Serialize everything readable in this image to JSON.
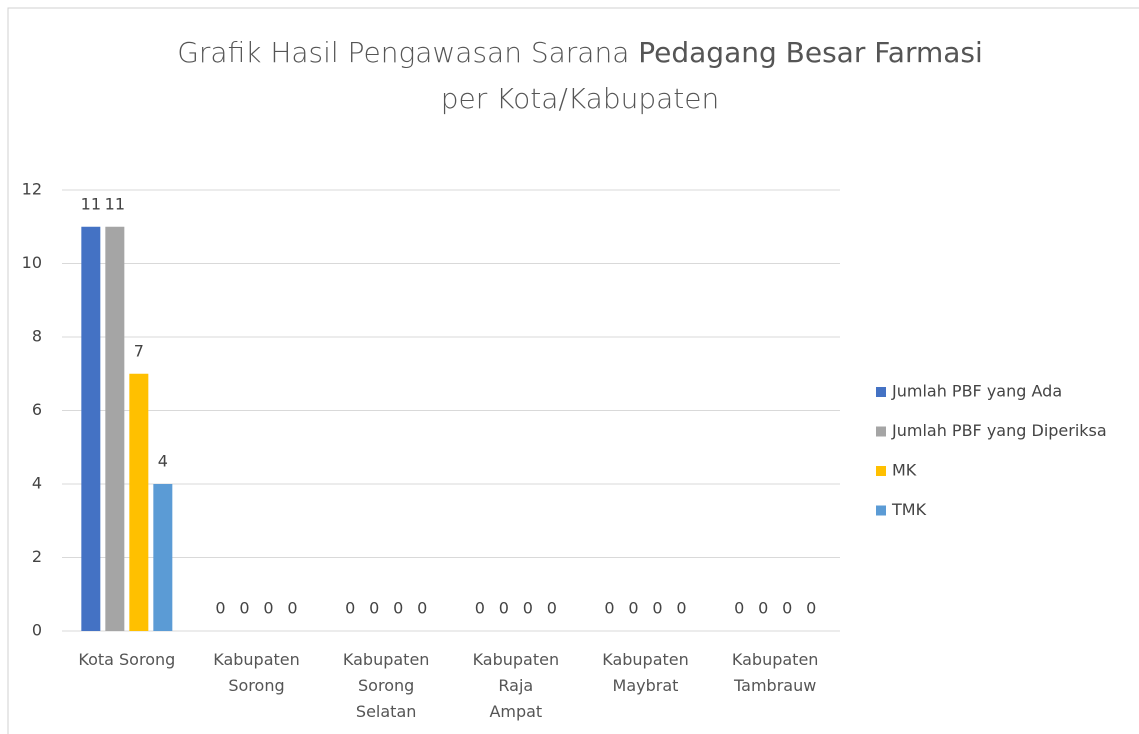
{
  "chart_data": {
    "type": "bar",
    "title": {
      "prefix": "Grafik Hasil Pengawasan Sarana",
      "bold": "Pedagang Besar Farmasi",
      "suffix": "per Kota/Kabupaten"
    },
    "categories": [
      "Kota Sorong",
      "Kabupaten Sorong",
      "Kabupaten Sorong Selatan",
      "Kabupaten Raja Ampat",
      "Kabupaten Maybrat",
      "Kabupaten Tambrauw"
    ],
    "series": [
      {
        "name": "Jumlah PBF yang Ada",
        "color": "#4472c4",
        "values": [
          11,
          0,
          0,
          0,
          0,
          0
        ]
      },
      {
        "name": "Jumlah PBF yang Diperiksa",
        "color": "#a5a5a5",
        "values": [
          11,
          0,
          0,
          0,
          0,
          0
        ]
      },
      {
        "name": "MK",
        "color": "#ffc000",
        "values": [
          7,
          0,
          0,
          0,
          0,
          0
        ]
      },
      {
        "name": "TMK",
        "color": "#5b9bd5",
        "values": [
          4,
          0,
          0,
          0,
          0,
          0
        ]
      }
    ],
    "ylim": [
      0,
      12
    ],
    "yticks": [
      0,
      2,
      4,
      6,
      8,
      10,
      12
    ],
    "grid": true,
    "legend": "right",
    "data_labels": true
  }
}
